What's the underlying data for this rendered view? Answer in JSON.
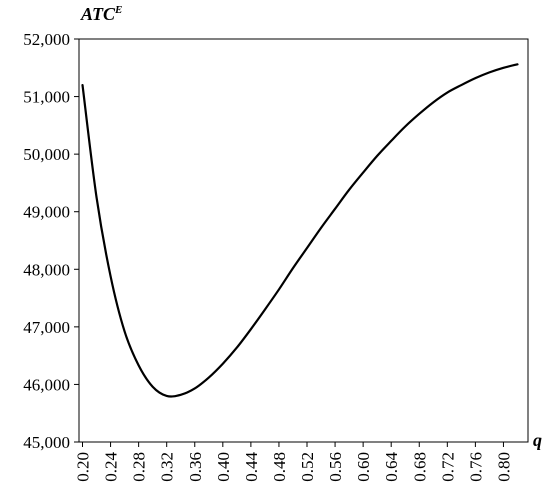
{
  "chart_data": {
    "type": "line",
    "ylabel": "ATC",
    "ylabel_superscript": "E",
    "xlabel": "q",
    "ylim": [
      45000,
      52000
    ],
    "xlim": [
      0.195,
      0.835
    ],
    "yticks": [
      45000,
      46000,
      47000,
      48000,
      49000,
      50000,
      51000,
      52000
    ],
    "ytick_labels": [
      "45,000",
      "46,000",
      "47,000",
      "48,000",
      "49,000",
      "50,000",
      "51,000",
      "52,000"
    ],
    "xticks": [
      0.2,
      0.24,
      0.28,
      0.32,
      0.36,
      0.4,
      0.44,
      0.48,
      0.52,
      0.56,
      0.6,
      0.64,
      0.68,
      0.72,
      0.76,
      0.8
    ],
    "xtick_labels": [
      "0.20",
      "0.24",
      "0.28",
      "0.32",
      "0.36",
      "0.40",
      "0.44",
      "0.48",
      "0.52",
      "0.56",
      "0.60",
      "0.64",
      "0.68",
      "0.72",
      "0.76",
      "0.80"
    ],
    "grid": false,
    "series": [
      {
        "color": "#000000",
        "x": [
          0.2,
          0.22,
          0.24,
          0.26,
          0.28,
          0.3,
          0.32,
          0.34,
          0.36,
          0.38,
          0.4,
          0.42,
          0.44,
          0.46,
          0.48,
          0.5,
          0.52,
          0.54,
          0.56,
          0.58,
          0.6,
          0.62,
          0.64,
          0.66,
          0.68,
          0.7,
          0.72,
          0.74,
          0.76,
          0.78,
          0.8,
          0.82
        ],
        "y": [
          51200,
          49250,
          47880,
          46920,
          46330,
          45960,
          45800,
          45820,
          45930,
          46120,
          46360,
          46640,
          46960,
          47300,
          47650,
          48020,
          48370,
          48720,
          49050,
          49380,
          49680,
          49970,
          50230,
          50480,
          50700,
          50900,
          51070,
          51200,
          51320,
          51420,
          51500,
          51560
        ]
      }
    ]
  }
}
